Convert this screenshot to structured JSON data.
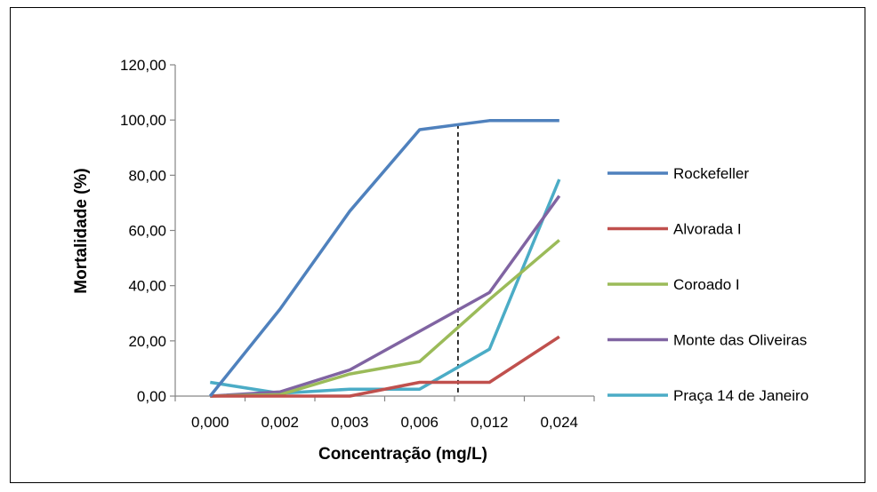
{
  "chart_data": {
    "type": "line",
    "title": "",
    "xlabel": "Concentração (mg/L)",
    "ylabel": "Mortalidade (%)",
    "categories": [
      "0,000",
      "0,002",
      "0,003",
      "0,006",
      "0,012",
      "0,024"
    ],
    "y_ticks": [
      "0,00",
      "20,00",
      "40,00",
      "60,00",
      "80,00",
      "100,00",
      "120,00"
    ],
    "ylim": [
      0,
      120
    ],
    "grid": false,
    "legend_position": "right",
    "reference_line": {
      "style": "dashed",
      "color": "#000000",
      "x_between_categories": [
        3,
        4
      ],
      "fraction": 0.55,
      "y_top": 98.5
    },
    "series": [
      {
        "name": "Rockefeller",
        "color": "#4F81BD",
        "values": [
          0,
          31.5,
          67,
          96.5,
          99.8,
          99.8
        ]
      },
      {
        "name": "Alvorada I",
        "color": "#C0504D",
        "values": [
          0,
          0,
          0,
          5,
          5,
          21.5
        ]
      },
      {
        "name": "Coroado I",
        "color": "#9BBB59",
        "values": [
          0,
          0.5,
          8,
          12.5,
          35,
          56.5
        ]
      },
      {
        "name": "Monte das Oliveiras",
        "color": "#8064A2",
        "values": [
          0,
          1.5,
          9.5,
          23.5,
          37.5,
          72.5
        ]
      },
      {
        "name": "Praça 14 de Janeiro",
        "color": "#4BACC6",
        "values": [
          5,
          1,
          2.5,
          2.5,
          17,
          78.5
        ]
      }
    ]
  }
}
